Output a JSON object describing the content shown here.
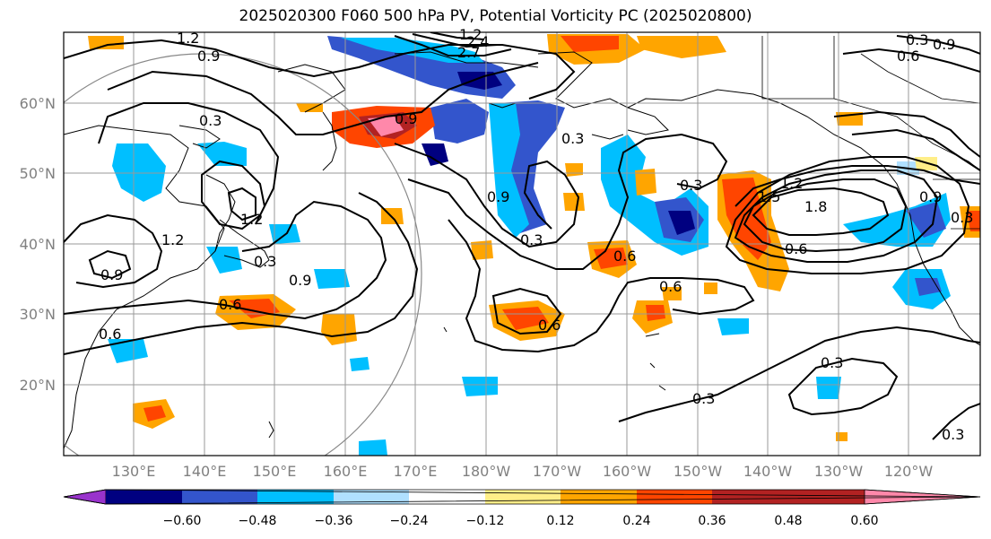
{
  "title": "2025020300 F060 500 hPa PV, Potential Vorticity PC (2025020800)",
  "lat_labels": [
    "60°N",
    "50°N",
    "40°N",
    "30°N",
    "20°N"
  ],
  "lon_labels": [
    "130°E",
    "140°E",
    "150°E",
    "160°E",
    "170°E",
    "180°W",
    "170°W",
    "160°W",
    "150°W",
    "140°W",
    "130°W",
    "120°W"
  ],
  "contour_labels": [
    "1.2",
    "0.9",
    "2.4",
    "2.7",
    "0.6",
    "0.9",
    "0.3",
    "0.9",
    "0.9",
    "0.3",
    "0.3",
    "0.9",
    "1.2",
    "0.3",
    "0.9",
    "0.6",
    "0.6",
    "0.6",
    "0.6",
    "0.6",
    "0.3",
    "1.5",
    "1.2",
    "1.8",
    "0.6",
    "0.3",
    "0.9",
    "0.3",
    "0.3",
    "0.3",
    "0.3",
    "1.2",
    "1.2"
  ],
  "colorbar": {
    "ticks": [
      "−0.60",
      "−0.48",
      "−0.36",
      "−0.24",
      "−0.12",
      "0.12",
      "0.24",
      "0.36",
      "0.48",
      "0.60"
    ],
    "colors": [
      "#9933cc",
      "#000080",
      "#3355cc",
      "#00bfff",
      "#b0e0ff",
      "#ffffff",
      "#ffee88",
      "#ffa500",
      "#ff4500",
      "#b22222",
      "#ff88aa"
    ]
  }
}
